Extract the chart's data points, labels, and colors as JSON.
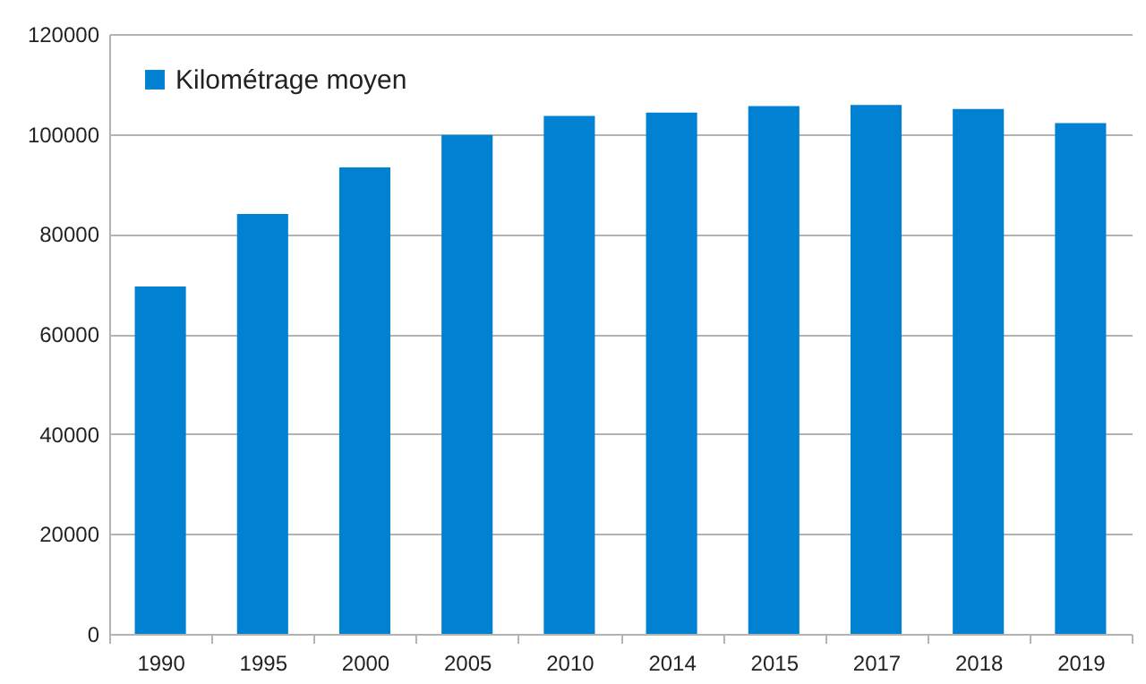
{
  "chart_data": {
    "type": "bar",
    "categories": [
      "1990",
      "1995",
      "2000",
      "2005",
      "2010",
      "2014",
      "2015",
      "2017",
      "2018",
      "2019"
    ],
    "series": [
      {
        "name": "Kilométrage moyen",
        "color": "#0081d2",
        "values": [
          69500,
          84000,
          93300,
          99800,
          103600,
          104300,
          105600,
          105800,
          105000,
          102200
        ]
      }
    ],
    "ylim": [
      0,
      120000
    ],
    "yticks": [
      0,
      20000,
      40000,
      60000,
      80000,
      100000,
      120000
    ],
    "grid": "y",
    "legend": "top left"
  }
}
